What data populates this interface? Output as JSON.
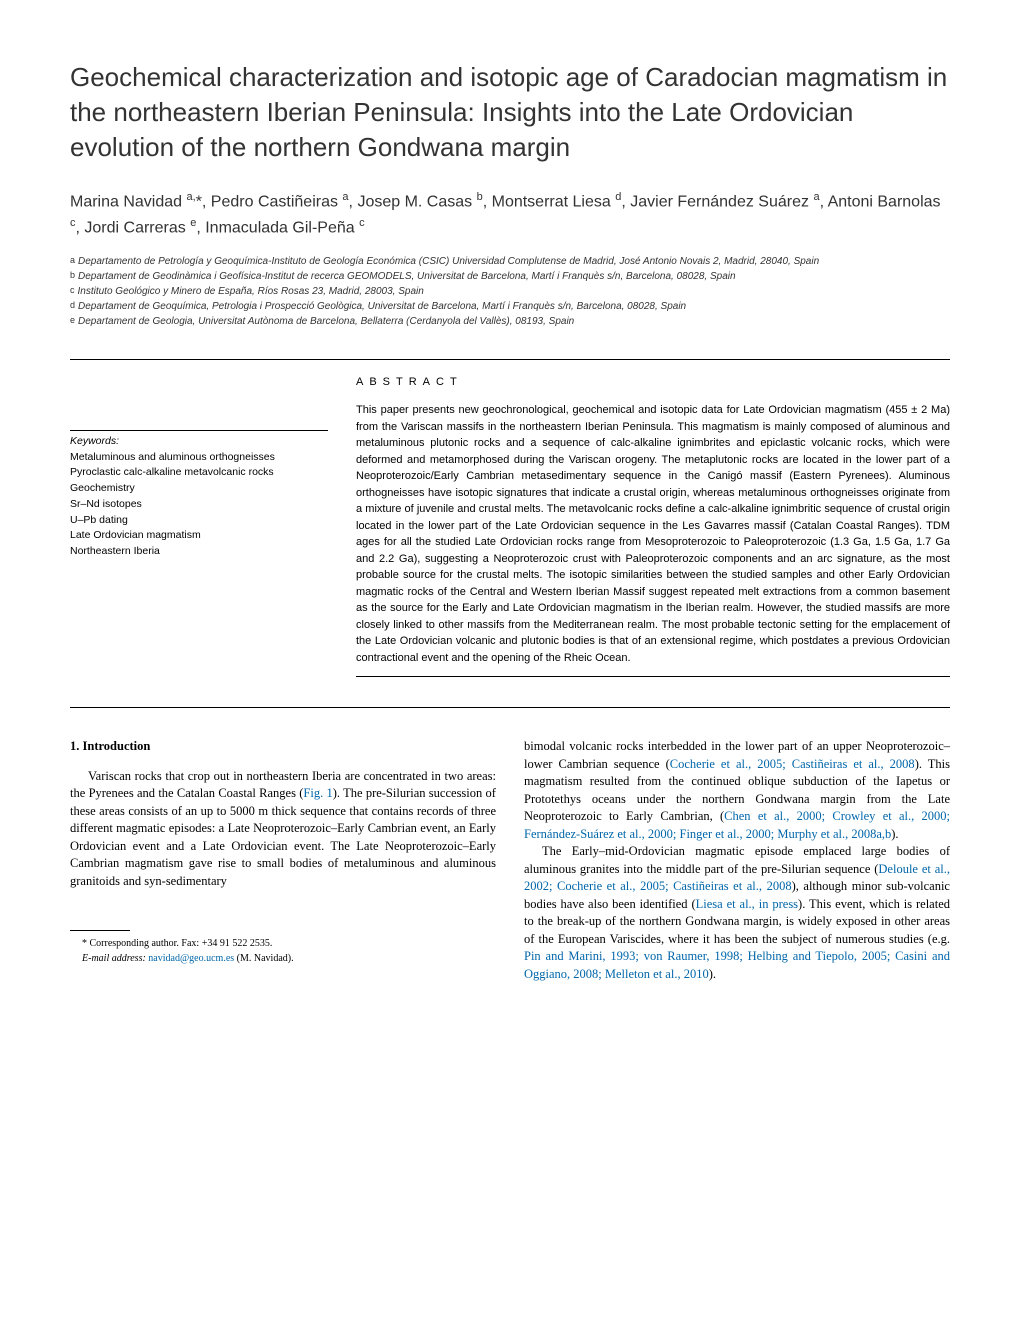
{
  "title": "Geochemical characterization and isotopic age of Caradocian magmatism in the northeastern Iberian Peninsula: Insights into the Late Ordovician evolution of the northern Gondwana margin",
  "authors_html": "Marina Navidad <sup>a,</sup>*, Pedro Castiñeiras <sup>a</sup>, Josep M. Casas <sup>b</sup>, Montserrat Liesa <sup>d</sup>, Javier Fernández Suárez <sup>a</sup>, Antoni Barnolas <sup>c</sup>, Jordi Carreras <sup>e</sup>, Inmaculada Gil-Peña <sup>c</sup>",
  "affiliations": [
    {
      "sup": "a",
      "text": "Departamento de Petrología y Geoquímica-Instituto de Geología Económica (CSIC) Universidad Complutense de Madrid, José Antonio Novais 2, Madrid, 28040, Spain"
    },
    {
      "sup": "b",
      "text": "Departament de Geodinàmica i Geofísica-Institut de recerca GEOMODELS, Universitat de Barcelona, Martí i Franquès s/n, Barcelona, 08028, Spain"
    },
    {
      "sup": "c",
      "text": "Instituto Geológico y Minero de España, Ríos Rosas 23, Madrid, 28003, Spain"
    },
    {
      "sup": "d",
      "text": "Departament de Geoquímica, Petrologia i Prospecció Geològica, Universitat de Barcelona, Martí i Franquès s/n, Barcelona, 08028, Spain"
    },
    {
      "sup": "e",
      "text": "Departament de Geologia, Universitat Autònoma de Barcelona, Bellaterra (Cerdanyola del Vallès), 08193, Spain"
    }
  ],
  "abstract_heading": "ABSTRACT",
  "abstract_text": "This paper presents new geochronological, geochemical and isotopic data for Late Ordovician magmatism (455 ± 2 Ma) from the Variscan massifs in the northeastern Iberian Peninsula. This magmatism is mainly composed of aluminous and metaluminous plutonic rocks and a sequence of calc-alkaline ignimbrites and epiclastic volcanic rocks, which were deformed and metamorphosed during the Variscan orogeny. The metaplutonic rocks are located in the lower part of a Neoproterozoic/Early Cambrian metasedimentary sequence in the Canigó massif (Eastern Pyrenees). Aluminous orthogneisses have isotopic signatures that indicate a crustal origin, whereas metaluminous orthogneisses originate from a mixture of juvenile and crustal melts. The metavolcanic rocks define a calc-alkaline ignimbritic sequence of crustal origin located in the lower part of the Late Ordovician sequence in the Les Gavarres massif (Catalan Coastal Ranges). TDM ages for all the studied Late Ordovician rocks range from Mesoproterozoic to Paleoproterozoic (1.3 Ga, 1.5 Ga, 1.7 Ga and 2.2 Ga), suggesting a Neoproterozoic crust with Paleoproterozoic components and an arc signature, as the most probable source for the crustal melts. The isotopic similarities between the studied samples and other Early Ordovician magmatic rocks of the Central and Western Iberian Massif suggest repeated melt extractions from a common basement as the source for the Early and Late Ordovician magmatism in the Iberian realm. However, the studied massifs are more closely linked to other massifs from the Mediterranean realm. The most probable tectonic setting for the emplacement of the Late Ordovician volcanic and plutonic bodies is that of an extensional regime, which postdates a previous Ordovician contractional event and the opening of the Rheic Ocean.",
  "keywords_label": "Keywords:",
  "keywords": [
    "Metaluminous and aluminous orthogneisses",
    "Pyroclastic calc-alkaline metavolcanic rocks",
    "Geochemistry",
    "Sr–Nd isotopes",
    "U–Pb dating",
    "Late Ordovician magmatism",
    "Northeastern Iberia"
  ],
  "section_heading": "1. Introduction",
  "col1_p1_pre": "Variscan rocks that crop out in northeastern Iberia are concentrated in two areas: the Pyrenees and the Catalan Coastal Ranges (",
  "fig1": "Fig. 1",
  "col1_p1_post": "). The pre-Silurian succession of these areas consists of an up to 5000 m thick sequence that contains records of three different magmatic episodes: a Late Neoproterozoic–Early Cambrian event, an Early Ordovician event and a Late Ordovician event. The Late Neoproterozoic–Early Cambrian magmatism gave rise to small bodies of metaluminous and aluminous granitoids and syn-sedimentary",
  "col2_p1_pre": "bimodal volcanic rocks interbedded in the lower part of an upper Neoproterozoic–lower Cambrian sequence (",
  "cite1": "Cocherie et al., 2005; Castiñeiras et al., 2008",
  "col2_p1_mid": "). This magmatism resulted from the continued oblique subduction of the Iapetus or Prototethys oceans under the northern Gondwana margin from the Late Neoproterozoic to Early Cambrian, (",
  "cite2": "Chen et al., 2000; Crowley et al., 2000; Fernández-Suárez et al., 2000; Finger et al., 2000; Murphy et al., 2008a,b",
  "col2_p1_post": ").",
  "col2_p2_pre": "The Early–mid-Ordovician magmatic episode emplaced large bodies of aluminous granites into the middle part of the pre-Silurian sequence (",
  "cite3": "Deloule et al., 2002; Cocherie et al., 2005; Castiñeiras et al., 2008",
  "col2_p2_mid1": "), although minor sub-volcanic bodies have also been identified (",
  "cite4": "Liesa et al., in press",
  "col2_p2_mid2": "). This event, which is related to the break-up of the northern Gondwana margin, is widely exposed in other areas of the European Variscides, where it has been the subject of numerous studies (e.g. ",
  "cite5": "Pin and Marini, 1993; von Raumer, 1998; Helbing and Tiepolo, 2005; Casini and Oggiano, 2008; Melleton et al., 2010",
  "col2_p2_post": ").",
  "footnote_corr": "* Corresponding author. Fax: +34 91 522 2535.",
  "footnote_email_label": "E-mail address: ",
  "footnote_email": "navidad@geo.ucm.es",
  "footnote_email_post": " (M. Navidad)."
}
